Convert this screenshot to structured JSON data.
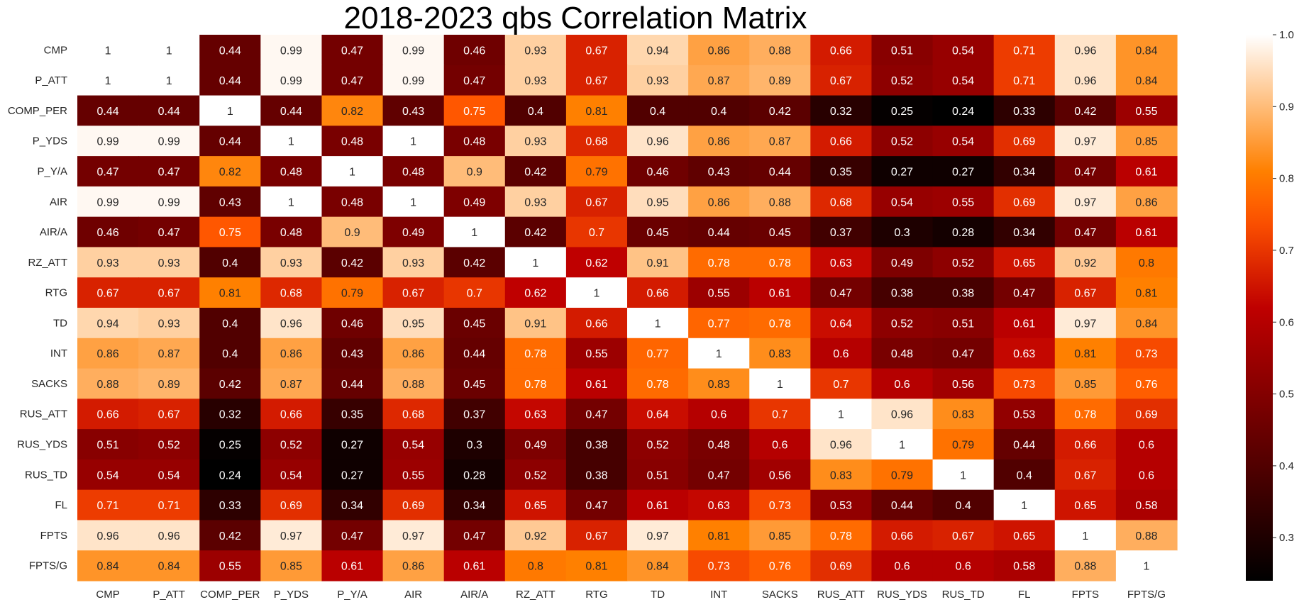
{
  "chart_data": {
    "type": "heatmap",
    "title": "2018-2023 qbs Correlation Matrix",
    "colormap": "gist_heat",
    "labels": [
      "CMP",
      "P_ATT",
      "COMP_PER",
      "P_YDS",
      "P_Y/A",
      "AIR",
      "AIR/A",
      "RZ_ATT",
      "RTG",
      "TD",
      "INT",
      "SACKS",
      "RUS_ATT",
      "RUS_YDS",
      "RUS_TD",
      "FL",
      "FPTS",
      "FPTS/G"
    ],
    "values": [
      [
        1,
        1,
        0.44,
        0.99,
        0.47,
        0.99,
        0.46,
        0.93,
        0.67,
        0.94,
        0.86,
        0.88,
        0.66,
        0.51,
        0.54,
        0.71,
        0.96,
        0.84
      ],
      [
        1,
        1,
        0.44,
        0.99,
        0.47,
        0.99,
        0.47,
        0.93,
        0.67,
        0.93,
        0.87,
        0.89,
        0.67,
        0.52,
        0.54,
        0.71,
        0.96,
        0.84
      ],
      [
        0.44,
        0.44,
        1,
        0.44,
        0.82,
        0.43,
        0.75,
        0.4,
        0.81,
        0.4,
        0.4,
        0.42,
        0.32,
        0.25,
        0.24,
        0.33,
        0.42,
        0.55
      ],
      [
        0.99,
        0.99,
        0.44,
        1,
        0.48,
        1,
        0.48,
        0.93,
        0.68,
        0.96,
        0.86,
        0.87,
        0.66,
        0.52,
        0.54,
        0.69,
        0.97,
        0.85
      ],
      [
        0.47,
        0.47,
        0.82,
        0.48,
        1,
        0.48,
        0.9,
        0.42,
        0.79,
        0.46,
        0.43,
        0.44,
        0.35,
        0.27,
        0.27,
        0.34,
        0.47,
        0.61
      ],
      [
        0.99,
        0.99,
        0.43,
        1,
        0.48,
        1,
        0.49,
        0.93,
        0.67,
        0.95,
        0.86,
        0.88,
        0.68,
        0.54,
        0.55,
        0.69,
        0.97,
        0.86
      ],
      [
        0.46,
        0.47,
        0.75,
        0.48,
        0.9,
        0.49,
        1,
        0.42,
        0.7,
        0.45,
        0.44,
        0.45,
        0.37,
        0.3,
        0.28,
        0.34,
        0.47,
        0.61
      ],
      [
        0.93,
        0.93,
        0.4,
        0.93,
        0.42,
        0.93,
        0.42,
        1,
        0.62,
        0.91,
        0.78,
        0.78,
        0.63,
        0.49,
        0.52,
        0.65,
        0.92,
        0.8
      ],
      [
        0.67,
        0.67,
        0.81,
        0.68,
        0.79,
        0.67,
        0.7,
        0.62,
        1,
        0.66,
        0.55,
        0.61,
        0.47,
        0.38,
        0.38,
        0.47,
        0.67,
        0.81
      ],
      [
        0.94,
        0.93,
        0.4,
        0.96,
        0.46,
        0.95,
        0.45,
        0.91,
        0.66,
        1,
        0.77,
        0.78,
        0.64,
        0.52,
        0.51,
        0.61,
        0.97,
        0.84
      ],
      [
        0.86,
        0.87,
        0.4,
        0.86,
        0.43,
        0.86,
        0.44,
        0.78,
        0.55,
        0.77,
        1,
        0.83,
        0.6,
        0.48,
        0.47,
        0.63,
        0.81,
        0.73
      ],
      [
        0.88,
        0.89,
        0.42,
        0.87,
        0.44,
        0.88,
        0.45,
        0.78,
        0.61,
        0.78,
        0.83,
        1,
        0.7,
        0.6,
        0.56,
        0.73,
        0.85,
        0.76
      ],
      [
        0.66,
        0.67,
        0.32,
        0.66,
        0.35,
        0.68,
        0.37,
        0.63,
        0.47,
        0.64,
        0.6,
        0.7,
        1,
        0.96,
        0.83,
        0.53,
        0.78,
        0.69
      ],
      [
        0.51,
        0.52,
        0.25,
        0.52,
        0.27,
        0.54,
        0.3,
        0.49,
        0.38,
        0.52,
        0.48,
        0.6,
        0.96,
        1,
        0.79,
        0.44,
        0.66,
        0.6
      ],
      [
        0.54,
        0.54,
        0.24,
        0.54,
        0.27,
        0.55,
        0.28,
        0.52,
        0.38,
        0.51,
        0.47,
        0.56,
        0.83,
        0.79,
        1,
        0.4,
        0.67,
        0.6
      ],
      [
        0.71,
        0.71,
        0.33,
        0.69,
        0.34,
        0.69,
        0.34,
        0.65,
        0.47,
        0.61,
        0.63,
        0.73,
        0.53,
        0.44,
        0.4,
        1,
        0.65,
        0.58
      ],
      [
        0.96,
        0.96,
        0.42,
        0.97,
        0.47,
        0.97,
        0.47,
        0.92,
        0.67,
        0.97,
        0.81,
        0.85,
        0.78,
        0.66,
        0.67,
        0.65,
        1,
        0.88
      ],
      [
        0.84,
        0.84,
        0.55,
        0.85,
        0.61,
        0.86,
        0.61,
        0.8,
        0.81,
        0.84,
        0.73,
        0.76,
        0.69,
        0.6,
        0.6,
        0.58,
        0.88,
        1
      ]
    ],
    "colorbar": {
      "vmin": 0.24,
      "vmax": 1.0,
      "ticks": [
        0.3,
        0.4,
        0.5,
        0.6,
        0.7,
        0.8,
        0.9,
        1.0
      ],
      "tick_labels": [
        "0.3",
        "0.4",
        "0.5",
        "0.6",
        "0.7",
        "0.8",
        "0.9",
        "1.0"
      ]
    },
    "annotated": true
  }
}
